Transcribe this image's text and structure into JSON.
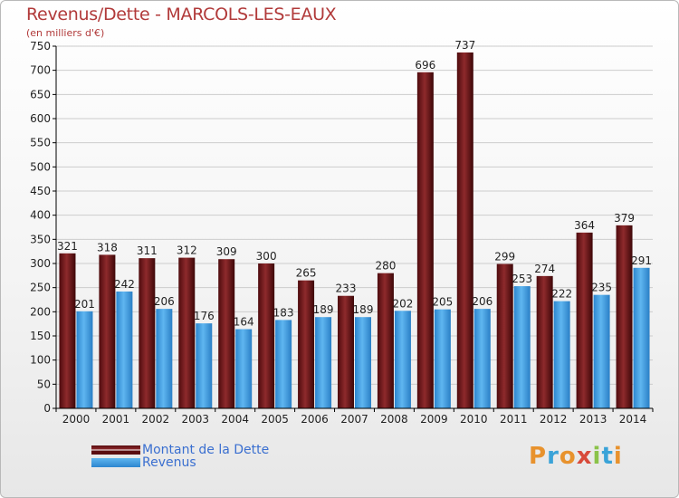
{
  "chart_title": "Revenus/Dette - MARCOLS-LES-EAUX",
  "chart_subtitle": "(en milliers d'€)",
  "brand": {
    "text": "Proxiti",
    "colors": [
      "#e8922d",
      "#3aa3d8",
      "#e8922d",
      "#d84a3a",
      "#8bc34a",
      "#3aa3d8",
      "#e8922d"
    ]
  },
  "colors": {
    "dette": "#7a1c1f",
    "revenus": "#4aa3e8",
    "axis": "#000000",
    "grid": "#cccccc",
    "title": "#b13a3a",
    "legend_text": "#3a6fd0"
  },
  "chart_data": {
    "type": "bar",
    "title": "Revenus/Dette - MARCOLS-LES-EAUX",
    "ylabel": "(en milliers d'€)",
    "categories": [
      "2000",
      "2001",
      "2002",
      "2003",
      "2004",
      "2005",
      "2006",
      "2007",
      "2008",
      "2009",
      "2010",
      "2011",
      "2012",
      "2013",
      "2014"
    ],
    "series": [
      {
        "name": "Montant de la Dette",
        "key": "dette",
        "values": [
          321,
          318,
          311,
          312,
          309,
          300,
          265,
          233,
          280,
          696,
          737,
          299,
          274,
          364,
          379
        ]
      },
      {
        "name": "Revenus",
        "key": "revenus",
        "values": [
          201,
          242,
          206,
          176,
          164,
          183,
          189,
          189,
          202,
          205,
          206,
          253,
          222,
          235,
          291
        ]
      }
    ],
    "ylim": [
      0,
      750
    ],
    "yticks": [
      0,
      50,
      100,
      150,
      200,
      250,
      300,
      350,
      400,
      450,
      500,
      550,
      600,
      650,
      700,
      750
    ],
    "grid": true,
    "legend": "bottom-left"
  }
}
